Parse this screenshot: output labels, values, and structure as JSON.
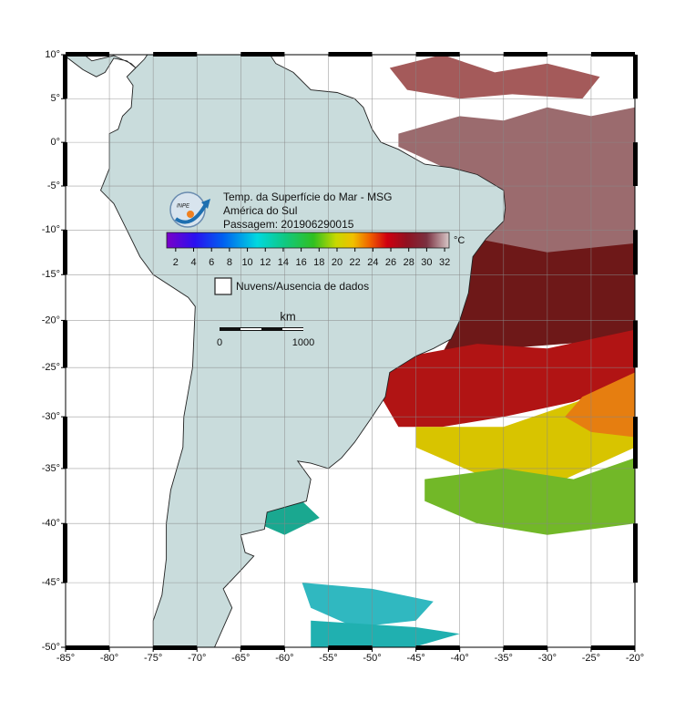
{
  "title_lines": [
    "Temp. da Superfície do Mar - MSG",
    "América do Sul",
    "Passagem: 201906290015"
  ],
  "logo_text": "INPE",
  "colorbar": {
    "unit": "°C",
    "range": [
      1,
      32.5
    ],
    "ticks": [
      2,
      4,
      6,
      8,
      10,
      12,
      14,
      16,
      18,
      20,
      22,
      24,
      26,
      28,
      30,
      32
    ]
  },
  "legend": {
    "no_data": "Nuvens/Ausencia de dados"
  },
  "scale_bar": {
    "unit": "km",
    "labels": [
      "0",
      "1000"
    ]
  },
  "map": {
    "lon_range": [
      -85,
      -20
    ],
    "lat_range": [
      -50,
      10
    ],
    "lon_ticks": [
      {
        "value": -85,
        "label": "-85°"
      },
      {
        "value": -80,
        "label": "-80°"
      },
      {
        "value": -75,
        "label": "-75°"
      },
      {
        "value": -70,
        "label": "-70°"
      },
      {
        "value": -65,
        "label": "-65°"
      },
      {
        "value": -60,
        "label": "-60°"
      },
      {
        "value": -55,
        "label": "-55°"
      },
      {
        "value": -50,
        "label": "-50°"
      },
      {
        "value": -45,
        "label": "-45°"
      },
      {
        "value": -40,
        "label": "-40°"
      },
      {
        "value": -35,
        "label": "-35°"
      },
      {
        "value": -30,
        "label": "-30°"
      },
      {
        "value": -25,
        "label": "-25°"
      },
      {
        "value": -20,
        "label": "-20°"
      }
    ],
    "lat_ticks": [
      {
        "value": 10,
        "label": "10°"
      },
      {
        "value": 5,
        "label": "5°"
      },
      {
        "value": 0,
        "label": "0°"
      },
      {
        "value": -5,
        "label": "-5°"
      },
      {
        "value": -10,
        "label": "-10°"
      },
      {
        "value": -15,
        "label": "-15°"
      },
      {
        "value": -20,
        "label": "-20°"
      },
      {
        "value": -25,
        "label": "-25°"
      },
      {
        "value": -30,
        "label": "-30°"
      },
      {
        "value": -35,
        "label": "-35°"
      },
      {
        "value": -40,
        "label": "-40°"
      },
      {
        "value": -45,
        "label": "-45°"
      },
      {
        "value": -50,
        "label": "-50°"
      }
    ]
  }
}
